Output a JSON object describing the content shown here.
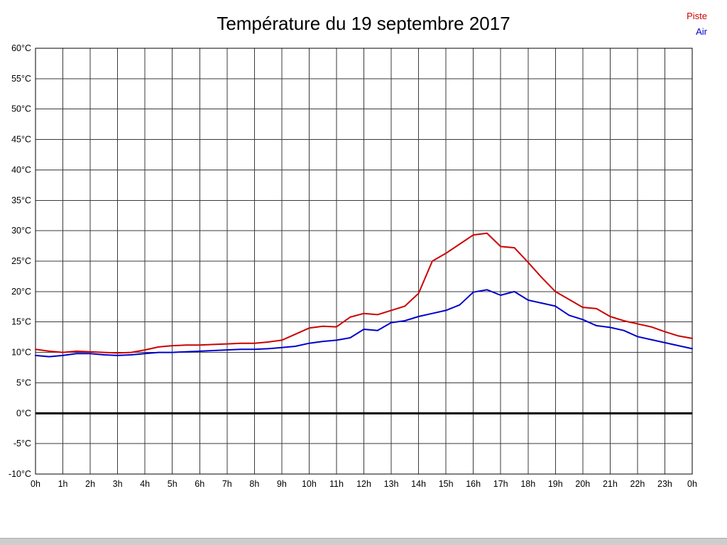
{
  "title": "Température du 19 septembre 2017",
  "legend": [
    {
      "label": "Piste",
      "color": "#cc0000"
    },
    {
      "label": "Air",
      "color": "#0000cc"
    }
  ],
  "chart_data": {
    "type": "line",
    "title": "Température du 19 septembre 2017",
    "xlabel": "",
    "ylabel": "",
    "xlim": [
      0,
      24
    ],
    "ylim": [
      -10,
      60
    ],
    "y_step": 5,
    "grid": true,
    "grid_color": "#3a3a3a",
    "zero_line": {
      "value": 0,
      "color": "#000000",
      "width": 3
    },
    "x_tick_labels": [
      "0h",
      "1h",
      "2h",
      "3h",
      "4h",
      "5h",
      "6h",
      "7h",
      "8h",
      "9h",
      "10h",
      "11h",
      "12h",
      "13h",
      "14h",
      "15h",
      "16h",
      "17h",
      "18h",
      "19h",
      "20h",
      "21h",
      "22h",
      "23h",
      "0h"
    ],
    "y_tick_labels": [
      "60°C",
      "55°C",
      "50°C",
      "45°C",
      "40°C",
      "35°C",
      "30°C",
      "25°C",
      "20°C",
      "15°C",
      "10°C",
      "5°C",
      "0°C",
      "-5°C",
      "-10°C"
    ],
    "legend_position": "top-right",
    "series": [
      {
        "name": "Piste",
        "color": "#cc0000",
        "x": [
          0,
          0.5,
          1,
          1.5,
          2,
          2.5,
          3,
          3.5,
          4,
          4.5,
          5,
          5.5,
          6,
          6.5,
          7,
          7.5,
          8,
          8.5,
          9,
          9.5,
          10,
          10.5,
          11,
          11.5,
          12,
          12.5,
          13,
          13.5,
          14,
          14.5,
          15,
          15.5,
          16,
          16.5,
          17,
          17.5,
          18,
          18.5,
          19,
          19.5,
          20,
          20.5,
          21,
          21.5,
          22,
          22.5,
          23,
          23.5,
          24
        ],
        "values": [
          10.5,
          10.2,
          10.0,
          10.2,
          10.1,
          10.0,
          9.9,
          10.0,
          10.4,
          10.9,
          11.1,
          11.2,
          11.2,
          11.3,
          11.4,
          11.5,
          11.5,
          11.7,
          12.0,
          13.0,
          14.0,
          14.3,
          14.2,
          15.8,
          16.4,
          16.2,
          16.9,
          17.6,
          19.7,
          25.0,
          26.3,
          27.8,
          29.3,
          29.6,
          27.4,
          27.2,
          24.8,
          22.3,
          20.0,
          18.7,
          17.4,
          17.2,
          15.9,
          15.2,
          14.7,
          14.2,
          13.4,
          12.7,
          12.3
        ]
      },
      {
        "name": "Air",
        "color": "#0000cc",
        "x": [
          0,
          0.5,
          1,
          1.5,
          2,
          2.5,
          3,
          3.5,
          4,
          4.5,
          5,
          5.5,
          6,
          6.5,
          7,
          7.5,
          8,
          8.5,
          9,
          9.5,
          10,
          10.5,
          11,
          11.5,
          12,
          12.5,
          13,
          13.5,
          14,
          14.5,
          15,
          15.5,
          16,
          16.5,
          17,
          17.5,
          18,
          18.5,
          19,
          19.5,
          20,
          20.5,
          21,
          21.5,
          22,
          22.5,
          23,
          23.5,
          24
        ],
        "values": [
          9.5,
          9.3,
          9.5,
          9.8,
          9.8,
          9.6,
          9.5,
          9.6,
          9.8,
          10.0,
          10.0,
          10.1,
          10.2,
          10.3,
          10.4,
          10.5,
          10.5,
          10.6,
          10.8,
          11.0,
          11.5,
          11.8,
          12.0,
          12.4,
          13.8,
          13.6,
          14.9,
          15.2,
          15.9,
          16.4,
          16.9,
          17.8,
          19.9,
          20.3,
          19.4,
          20.0,
          18.6,
          18.1,
          17.6,
          16.1,
          15.4,
          14.4,
          14.1,
          13.6,
          12.6,
          12.1,
          11.6,
          11.1,
          10.6
        ]
      }
    ]
  }
}
